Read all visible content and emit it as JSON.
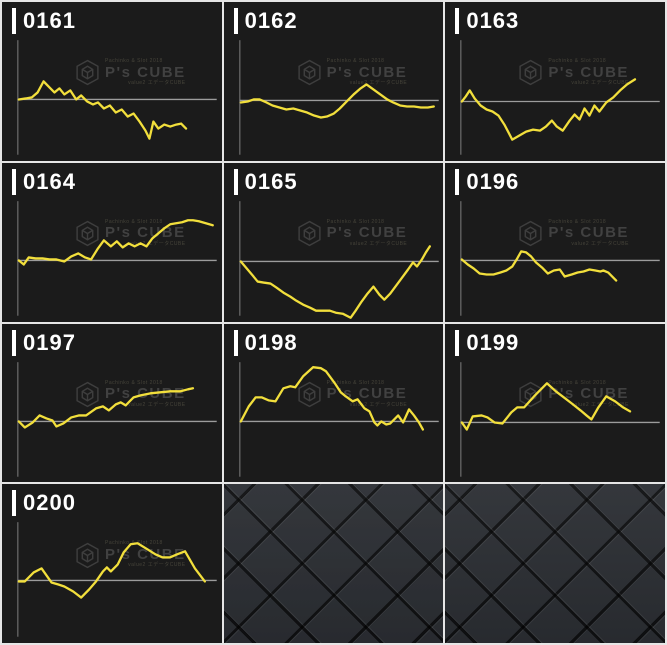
{
  "colors": {
    "cell_background": "#1b1b1b",
    "grid_line": "#e6e6e6",
    "line": "#f2df3c",
    "axis": "#6f6f6f",
    "baseline": "#9c9c9c",
    "label_text": "#ffffff",
    "watermark": "#414141",
    "pattern_face": "#2c2f34",
    "pattern_groove": "#121316"
  },
  "watermark": {
    "top": "Pachinko & Slot 2018",
    "title": "P's CUBE",
    "bottom": "value2 エデータCUBE"
  },
  "chart_data": [
    {
      "type": "line",
      "title": "0161",
      "ylabel": "",
      "note": "slump graph, y in screen px (down=minus), baseline is the ±0 line",
      "baseline": 97,
      "points": [
        [
          17,
          97
        ],
        [
          24,
          96
        ],
        [
          30,
          95
        ],
        [
          36,
          90
        ],
        [
          42,
          79
        ],
        [
          48,
          85
        ],
        [
          53,
          90
        ],
        [
          58,
          86
        ],
        [
          63,
          92
        ],
        [
          69,
          88
        ],
        [
          75,
          97
        ],
        [
          80,
          93
        ],
        [
          86,
          99
        ],
        [
          92,
          102
        ],
        [
          97,
          100
        ],
        [
          103,
          106
        ],
        [
          109,
          103
        ],
        [
          115,
          110
        ],
        [
          121,
          107
        ],
        [
          127,
          114
        ],
        [
          133,
          111
        ],
        [
          139,
          119
        ],
        [
          145,
          128
        ],
        [
          149,
          136
        ],
        [
          153,
          119
        ],
        [
          158,
          126
        ],
        [
          164,
          122
        ],
        [
          170,
          124
        ],
        [
          176,
          122
        ],
        [
          181,
          121
        ],
        [
          186,
          126
        ]
      ]
    },
    {
      "type": "line",
      "title": "0162",
      "ylabel": "",
      "baseline": 98,
      "points": [
        [
          17,
          100
        ],
        [
          24,
          99
        ],
        [
          30,
          97
        ],
        [
          36,
          97
        ],
        [
          43,
          100
        ],
        [
          49,
          103
        ],
        [
          56,
          105
        ],
        [
          63,
          107
        ],
        [
          70,
          106
        ],
        [
          77,
          108
        ],
        [
          84,
          110
        ],
        [
          91,
          113
        ],
        [
          98,
          115
        ],
        [
          104,
          114
        ],
        [
          111,
          111
        ],
        [
          117,
          106
        ],
        [
          124,
          99
        ],
        [
          131,
          92
        ],
        [
          138,
          86
        ],
        [
          144,
          82
        ],
        [
          151,
          87
        ],
        [
          158,
          92
        ],
        [
          165,
          97
        ],
        [
          171,
          100
        ],
        [
          178,
          103
        ],
        [
          185,
          104
        ],
        [
          192,
          104
        ],
        [
          199,
          105
        ],
        [
          206,
          105
        ],
        [
          212,
          104
        ]
      ]
    },
    {
      "type": "line",
      "title": "0163",
      "ylabel": "",
      "baseline": 99,
      "points": [
        [
          17,
          99
        ],
        [
          21,
          94
        ],
        [
          25,
          88
        ],
        [
          30,
          96
        ],
        [
          36,
          103
        ],
        [
          42,
          107
        ],
        [
          48,
          109
        ],
        [
          54,
          113
        ],
        [
          60,
          122
        ],
        [
          68,
          137
        ],
        [
          75,
          133
        ],
        [
          82,
          129
        ],
        [
          89,
          127
        ],
        [
          96,
          128
        ],
        [
          102,
          124
        ],
        [
          108,
          118
        ],
        [
          113,
          124
        ],
        [
          119,
          128
        ],
        [
          126,
          118
        ],
        [
          131,
          112
        ],
        [
          136,
          117
        ],
        [
          141,
          106
        ],
        [
          146,
          113
        ],
        [
          151,
          103
        ],
        [
          156,
          109
        ],
        [
          163,
          100
        ],
        [
          170,
          95
        ],
        [
          177,
          88
        ],
        [
          184,
          82
        ],
        [
          192,
          77
        ]
      ]
    },
    {
      "type": "line",
      "title": "0164",
      "ylabel": "",
      "baseline": 97,
      "points": [
        [
          17,
          97
        ],
        [
          22,
          101
        ],
        [
          27,
          94
        ],
        [
          34,
          95
        ],
        [
          41,
          95
        ],
        [
          48,
          96
        ],
        [
          55,
          96
        ],
        [
          63,
          98
        ],
        [
          70,
          93
        ],
        [
          77,
          90
        ],
        [
          84,
          94
        ],
        [
          90,
          96
        ],
        [
          97,
          85
        ],
        [
          103,
          77
        ],
        [
          110,
          83
        ],
        [
          116,
          78
        ],
        [
          122,
          84
        ],
        [
          128,
          80
        ],
        [
          134,
          83
        ],
        [
          140,
          80
        ],
        [
          146,
          83
        ],
        [
          152,
          75
        ],
        [
          158,
          70
        ],
        [
          164,
          65
        ],
        [
          170,
          61
        ],
        [
          176,
          60
        ],
        [
          182,
          59
        ],
        [
          188,
          57
        ],
        [
          193,
          57
        ],
        [
          199,
          58
        ],
        [
          206,
          60
        ],
        [
          213,
          62
        ]
      ]
    },
    {
      "type": "line",
      "title": "0165",
      "ylabel": "",
      "baseline": 98,
      "points": [
        [
          17,
          98
        ],
        [
          23,
          105
        ],
        [
          29,
          112
        ],
        [
          34,
          118
        ],
        [
          40,
          119
        ],
        [
          47,
          120
        ],
        [
          53,
          124
        ],
        [
          60,
          129
        ],
        [
          67,
          133
        ],
        [
          73,
          137
        ],
        [
          80,
          141
        ],
        [
          87,
          144
        ],
        [
          93,
          147
        ],
        [
          100,
          147
        ],
        [
          107,
          147
        ],
        [
          113,
          149
        ],
        [
          120,
          150
        ],
        [
          128,
          154
        ],
        [
          133,
          147
        ],
        [
          139,
          138
        ],
        [
          145,
          130
        ],
        [
          151,
          123
        ],
        [
          157,
          131
        ],
        [
          162,
          136
        ],
        [
          168,
          130
        ],
        [
          174,
          122
        ],
        [
          180,
          114
        ],
        [
          186,
          106
        ],
        [
          191,
          99
        ],
        [
          195,
          103
        ],
        [
          200,
          96
        ],
        [
          204,
          89
        ],
        [
          208,
          83
        ]
      ]
    },
    {
      "type": "line",
      "title": "0196",
      "ylabel": "",
      "baseline": 97,
      "points": [
        [
          17,
          96
        ],
        [
          23,
          101
        ],
        [
          29,
          105
        ],
        [
          35,
          110
        ],
        [
          42,
          111
        ],
        [
          49,
          111
        ],
        [
          56,
          109
        ],
        [
          62,
          107
        ],
        [
          68,
          103
        ],
        [
          73,
          95
        ],
        [
          77,
          88
        ],
        [
          82,
          89
        ],
        [
          87,
          93
        ],
        [
          92,
          99
        ],
        [
          98,
          104
        ],
        [
          104,
          110
        ],
        [
          110,
          107
        ],
        [
          116,
          106
        ],
        [
          121,
          113
        ],
        [
          128,
          111
        ],
        [
          134,
          109
        ],
        [
          140,
          108
        ],
        [
          146,
          106
        ],
        [
          152,
          107
        ],
        [
          157,
          108
        ],
        [
          160,
          107
        ],
        [
          165,
          109
        ],
        [
          169,
          113
        ],
        [
          173,
          117
        ]
      ]
    },
    {
      "type": "line",
      "title": "0197",
      "ylabel": "",
      "baseline": 97,
      "points": [
        [
          17,
          97
        ],
        [
          23,
          103
        ],
        [
          31,
          98
        ],
        [
          38,
          91
        ],
        [
          45,
          94
        ],
        [
          51,
          96
        ],
        [
          55,
          102
        ],
        [
          62,
          99
        ],
        [
          70,
          93
        ],
        [
          78,
          91
        ],
        [
          85,
          91
        ],
        [
          95,
          84
        ],
        [
          102,
          82
        ],
        [
          108,
          86
        ],
        [
          115,
          80
        ],
        [
          120,
          78
        ],
        [
          125,
          81
        ],
        [
          133,
          73
        ],
        [
          140,
          71
        ],
        [
          150,
          69
        ],
        [
          160,
          68
        ],
        [
          170,
          67
        ],
        [
          180,
          67
        ],
        [
          188,
          65
        ],
        [
          193,
          64
        ]
      ]
    },
    {
      "type": "line",
      "title": "0198",
      "ylabel": "",
      "baseline": 97,
      "points": [
        [
          17,
          97
        ],
        [
          25,
          82
        ],
        [
          32,
          73
        ],
        [
          38,
          73
        ],
        [
          45,
          76
        ],
        [
          52,
          77
        ],
        [
          60,
          64
        ],
        [
          67,
          62
        ],
        [
          72,
          63
        ],
        [
          80,
          52
        ],
        [
          90,
          43
        ],
        [
          98,
          44
        ],
        [
          103,
          47
        ],
        [
          112,
          59
        ],
        [
          118,
          68
        ],
        [
          123,
          72
        ],
        [
          130,
          77
        ],
        [
          135,
          75
        ],
        [
          142,
          84
        ],
        [
          147,
          87
        ],
        [
          152,
          98
        ],
        [
          155,
          101
        ],
        [
          159,
          97
        ],
        [
          164,
          100
        ],
        [
          168,
          99
        ],
        [
          176,
          91
        ],
        [
          181,
          98
        ],
        [
          187,
          85
        ],
        [
          192,
          91
        ],
        [
          197,
          98
        ],
        [
          201,
          105
        ]
      ]
    },
    {
      "type": "line",
      "title": "0199",
      "ylabel": "",
      "baseline": 98,
      "points": [
        [
          17,
          98
        ],
        [
          22,
          105
        ],
        [
          28,
          92
        ],
        [
          37,
          91
        ],
        [
          43,
          93
        ],
        [
          50,
          98
        ],
        [
          58,
          99
        ],
        [
          67,
          88
        ],
        [
          73,
          83
        ],
        [
          80,
          83
        ],
        [
          90,
          72
        ],
        [
          97,
          65
        ],
        [
          103,
          59
        ],
        [
          112,
          67
        ],
        [
          120,
          73
        ],
        [
          128,
          79
        ],
        [
          137,
          86
        ],
        [
          143,
          91
        ],
        [
          148,
          95
        ],
        [
          155,
          83
        ],
        [
          163,
          72
        ],
        [
          172,
          77
        ],
        [
          180,
          83
        ],
        [
          187,
          87
        ]
      ]
    },
    {
      "type": "line",
      "title": "0200",
      "ylabel": "",
      "baseline": 96,
      "points": [
        [
          17,
          97
        ],
        [
          23,
          97
        ],
        [
          32,
          88
        ],
        [
          40,
          84
        ],
        [
          50,
          98
        ],
        [
          57,
          100
        ],
        [
          63,
          102
        ],
        [
          72,
          107
        ],
        [
          80,
          113
        ],
        [
          88,
          105
        ],
        [
          95,
          97
        ],
        [
          102,
          87
        ],
        [
          106,
          83
        ],
        [
          110,
          87
        ],
        [
          117,
          80
        ],
        [
          123,
          68
        ],
        [
          130,
          60
        ],
        [
          137,
          59
        ],
        [
          147,
          65
        ],
        [
          155,
          70
        ],
        [
          162,
          73
        ],
        [
          170,
          73
        ],
        [
          177,
          70
        ],
        [
          185,
          67
        ],
        [
          195,
          84
        ],
        [
          205,
          97
        ]
      ]
    }
  ],
  "texture_cells": {
    "count": 2,
    "description": "dark quilted diamond pattern filler"
  }
}
